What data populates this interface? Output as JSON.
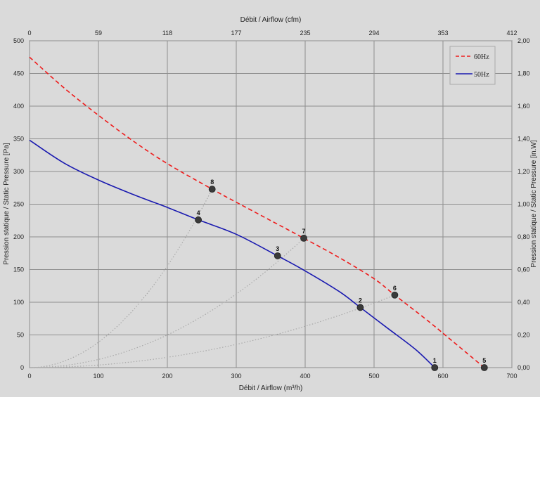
{
  "chart_data": {
    "type": "line",
    "x_bottom": {
      "label": "Débit / Airflow (m³/h)",
      "min": 0,
      "max": 700,
      "ticks": [
        0,
        100,
        200,
        300,
        400,
        500,
        600,
        700
      ]
    },
    "x_top": {
      "label": "Débit / Airflow (cfm)",
      "min": 0,
      "max": 412,
      "ticks": [
        "0",
        "59",
        "118",
        "177",
        "235",
        "294",
        "353",
        "412"
      ]
    },
    "y_left": {
      "label": "Pression statique / Static Pressure [Pa]",
      "min": 0,
      "max": 500,
      "ticks": [
        0,
        50,
        100,
        150,
        200,
        250,
        300,
        350,
        400,
        450,
        500
      ]
    },
    "y_right": {
      "label": "Pression statique / Static Pressure [in.W]",
      "min": 0,
      "max": 2,
      "ticks": [
        "0,00",
        "0,20",
        "0,40",
        "0,60",
        "0,80",
        "1,00",
        "1,20",
        "1,40",
        "1,60",
        "1,80",
        "2,00"
      ]
    },
    "grid": true,
    "legend_position": "top-right",
    "series": [
      {
        "name": "60Hz",
        "color": "#ee1c1c",
        "dash": "dashed",
        "x": [
          0,
          50,
          100,
          150,
          200,
          265,
          300,
          350,
          398,
          450,
          500,
          530,
          580,
          620,
          660
        ],
        "y": [
          475,
          428,
          386,
          347,
          312,
          273,
          253,
          225,
          198,
          168,
          136,
          111,
          70,
          35,
          0
        ]
      },
      {
        "name": "50Hz",
        "color": "#1a1ab0",
        "dash": "solid",
        "x": [
          0,
          50,
          100,
          150,
          200,
          245,
          300,
          360,
          400,
          450,
          480,
          520,
          560,
          588
        ],
        "y": [
          348,
          313,
          287,
          265,
          245,
          226,
          204,
          171,
          148,
          116,
          92,
          60,
          28,
          0
        ]
      }
    ],
    "points": [
      {
        "label": "1",
        "x": 588,
        "y": 0
      },
      {
        "label": "2",
        "x": 480,
        "y": 92
      },
      {
        "label": "3",
        "x": 360,
        "y": 171
      },
      {
        "label": "4",
        "x": 245,
        "y": 226
      },
      {
        "label": "5",
        "x": 660,
        "y": 0
      },
      {
        "label": "6",
        "x": 530,
        "y": 111
      },
      {
        "label": "7",
        "x": 398,
        "y": 198
      },
      {
        "label": "8",
        "x": 265,
        "y": 273
      }
    ],
    "system_curves_through": [
      {
        "x": 265,
        "y": 273
      },
      {
        "x": 398,
        "y": 198
      },
      {
        "x": 530,
        "y": 111
      }
    ]
  }
}
